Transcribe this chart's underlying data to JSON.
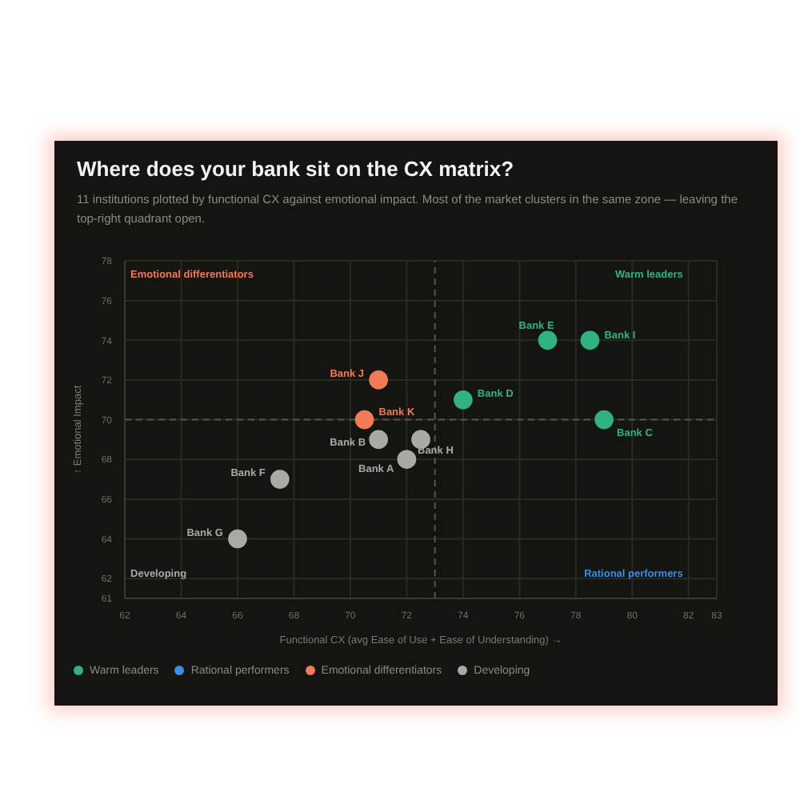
{
  "chart_data": {
    "type": "scatter",
    "title": "Where does your bank sit on the CX matrix?",
    "subtitle": "11 institutions plotted by functional CX against emotional impact. Most of the market clusters in the same zone — leaving the top-right quadrant open.",
    "xlabel": "Functional CX  (avg Ease of Use + Ease of Understanding)  →",
    "ylabel": "↑ Emotional Impact",
    "xlim": [
      62,
      83
    ],
    "xticks": [
      62,
      64,
      66,
      68,
      70,
      72,
      74,
      76,
      78,
      80,
      82,
      83
    ],
    "ylim": [
      61,
      78
    ],
    "yticks": [
      61,
      62,
      64,
      66,
      68,
      70,
      72,
      74,
      76,
      78
    ],
    "grid": true,
    "legend": "bottom",
    "marker": "circle",
    "series": [
      {
        "name": "Warm leaders",
        "color": "#2fb383",
        "x": [
          77,
          78.5,
          74,
          79
        ],
        "values": [
          74,
          74,
          71,
          70
        ]
      },
      {
        "name": "Rational performers",
        "color": "#3a8ee6"
      },
      {
        "name": "Emotional differentiators",
        "color": "#f27a55",
        "x": [
          71,
          70.5
        ],
        "values": [
          72,
          70
        ]
      },
      {
        "name": "Developing",
        "color": "#a9a9a6",
        "x": [
          71,
          72.5,
          72,
          67.5,
          66
        ],
        "values": [
          69,
          69,
          68,
          67,
          64
        ]
      }
    ],
    "ref_lines": [
      {
        "axis": "x",
        "value": 73,
        "line_style": "dashed"
      },
      {
        "axis": "y",
        "value": 70,
        "line_style": "dashed"
      }
    ],
    "annotations": [
      "Emotional differentiators",
      "Warm leaders",
      "Developing",
      "Rational performers",
      {
        "text": "Bank J",
        "x": 71,
        "y": 72
      },
      {
        "text": "Bank K",
        "x": 70.5,
        "y": 70
      },
      {
        "text": "Bank B",
        "x": 71,
        "y": 69
      },
      {
        "text": "Bank A",
        "x": 72,
        "y": 68
      },
      {
        "text": "Bank H",
        "x": 72.5,
        "y": 69
      },
      {
        "text": "Bank F",
        "x": 67.5,
        "y": 67
      },
      {
        "text": "Bank G",
        "x": 66,
        "y": 64
      },
      {
        "text": "Bank E",
        "x": 77,
        "y": 74
      },
      {
        "text": "Bank I",
        "x": 78.5,
        "y": 74
      },
      {
        "text": "Bank D",
        "x": 74,
        "y": 71
      },
      {
        "text": "Bank C",
        "x": 79,
        "y": 70
      }
    ]
  }
}
